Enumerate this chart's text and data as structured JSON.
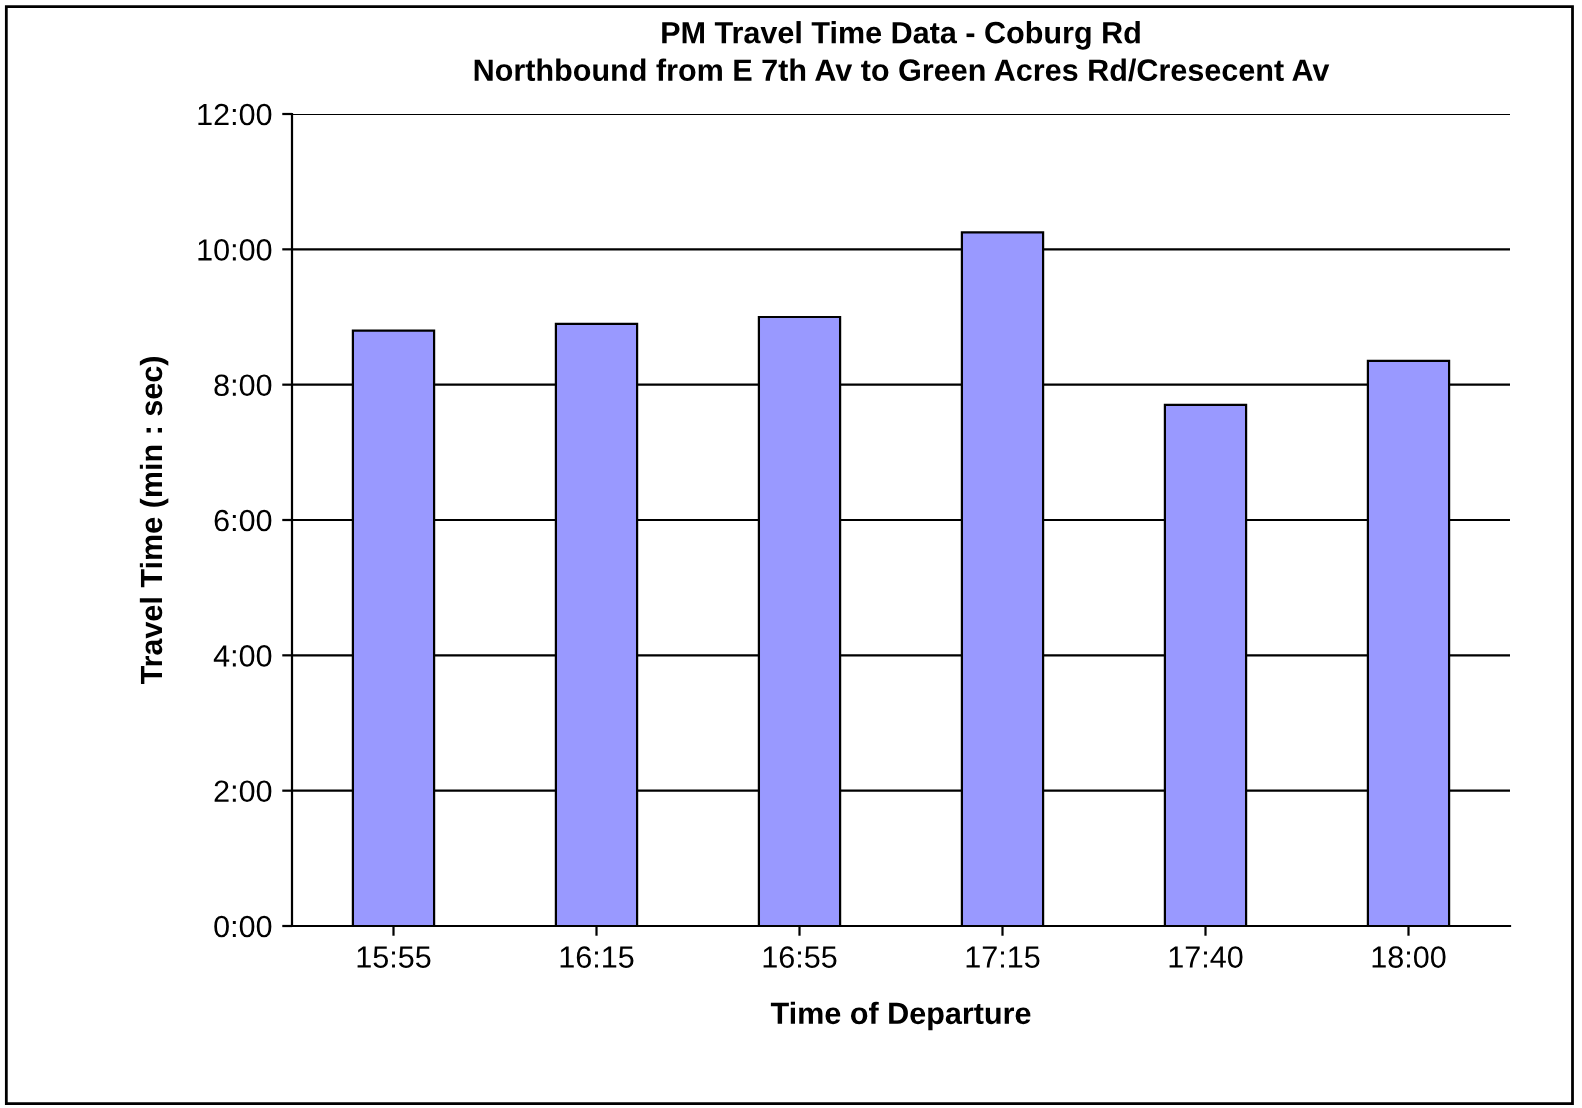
{
  "chart_data": {
    "type": "bar",
    "title": "PM Travel Time Data - Coburg Rd\nNorthbound from E 7th Av to Green Acres Rd/Cresecent Av",
    "xlabel": "Time of Departure",
    "ylabel": "Travel Time (min : sec)",
    "categories": [
      "15:55",
      "16:15",
      "16:55",
      "17:15",
      "17:40",
      "18:00"
    ],
    "values": [
      8.8,
      8.9,
      9.0,
      10.25,
      7.7,
      8.35
    ],
    "color": "#9999ff",
    "ylim": [
      0,
      12
    ],
    "yticks": [
      {
        "value": 0,
        "label": "0:00"
      },
      {
        "value": 2,
        "label": "2:00"
      },
      {
        "value": 4,
        "label": "4:00"
      },
      {
        "value": 6,
        "label": "6:00"
      },
      {
        "value": 8,
        "label": "8:00"
      },
      {
        "value": 10,
        "label": "10:00"
      },
      {
        "value": 12,
        "label": "12:00"
      }
    ],
    "grid": "y",
    "legend": false
  }
}
